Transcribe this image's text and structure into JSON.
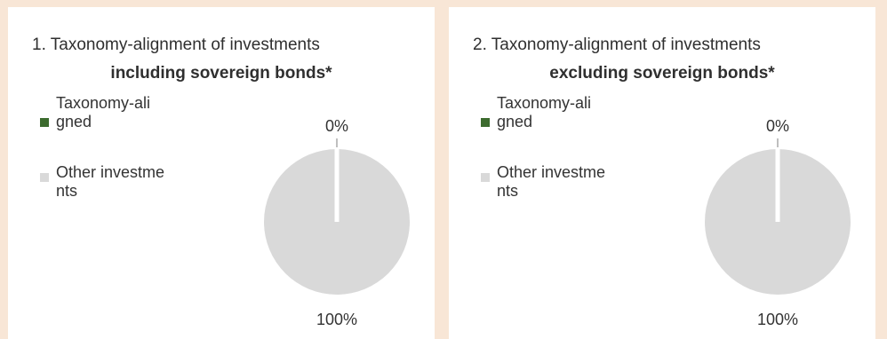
{
  "colors": {
    "page_background": "#f8e6d6",
    "panel_background": "#ffffff",
    "taxonomy_aligned": "#3c6b2e",
    "other_investments": "#d9d9d9"
  },
  "legend": {
    "taxonomy_aligned": "Taxonomy-aligned",
    "other_investments": "Other investments"
  },
  "chart_data": [
    {
      "type": "pie",
      "title": "1. Taxonomy-alignment of investments",
      "subtitle": "including sovereign bonds*",
      "legend_position": "left",
      "slices": [
        {
          "label": "Taxonomy-aligned",
          "value": 0,
          "display": "0%"
        },
        {
          "label": "Other investments",
          "value": 100,
          "display": "100%"
        }
      ]
    },
    {
      "type": "pie",
      "title": "2. Taxonomy-alignment of investments",
      "subtitle": "excluding sovereign bonds*",
      "legend_position": "left",
      "slices": [
        {
          "label": "Taxonomy-aligned",
          "value": 0,
          "display": "0%"
        },
        {
          "label": "Other investments",
          "value": 100,
          "display": "100%"
        }
      ]
    }
  ]
}
